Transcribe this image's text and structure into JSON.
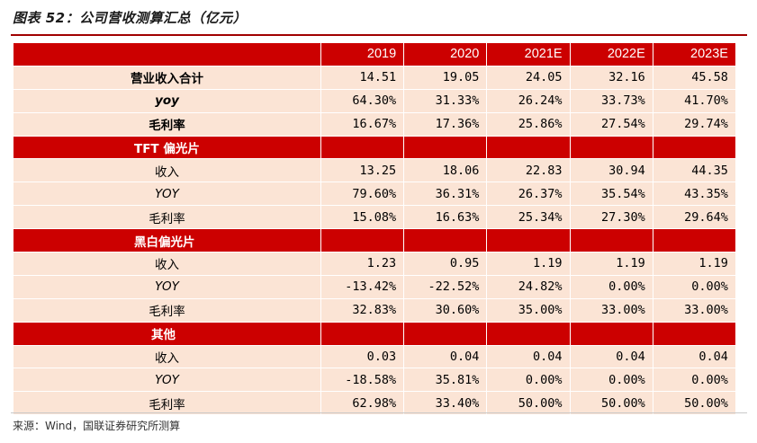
{
  "title": "图表 52：公司营收测算汇总（亿元）",
  "columns": [
    "2019",
    "2020",
    "2021E",
    "2022E",
    "2023E"
  ],
  "summary_rows": [
    {
      "label": "营业收入合计",
      "values": [
        "14.51",
        "19.05",
        "24.05",
        "32.16",
        "45.58"
      ]
    },
    {
      "label": "yoy",
      "values": [
        "64.30%",
        "31.33%",
        "26.24%",
        "33.73%",
        "41.70%"
      ]
    },
    {
      "label": "毛利率",
      "values": [
        "16.67%",
        "17.36%",
        "25.86%",
        "27.54%",
        "29.74%"
      ]
    }
  ],
  "segments": [
    {
      "name": "TFT 偏光片",
      "rows": [
        {
          "label": "收入",
          "values": [
            "13.25",
            "18.06",
            "22.83",
            "30.94",
            "44.35"
          ]
        },
        {
          "label": "YOY",
          "values": [
            "79.60%",
            "36.31%",
            "26.37%",
            "35.54%",
            "43.35%"
          ]
        },
        {
          "label": "毛利率",
          "values": [
            "15.08%",
            "16.63%",
            "25.34%",
            "27.30%",
            "29.64%"
          ]
        }
      ]
    },
    {
      "name": "黑白偏光片",
      "rows": [
        {
          "label": "收入",
          "values": [
            "1.23",
            "0.95",
            "1.19",
            "1.19",
            "1.19"
          ]
        },
        {
          "label": "YOY",
          "values": [
            "-13.42%",
            "-22.52%",
            "24.82%",
            "0.00%",
            "0.00%"
          ]
        },
        {
          "label": "毛利率",
          "values": [
            "32.83%",
            "30.60%",
            "35.00%",
            "33.00%",
            "33.00%"
          ]
        }
      ]
    },
    {
      "name": "其他",
      "rows": [
        {
          "label": "收入",
          "values": [
            "0.03",
            "0.04",
            "0.04",
            "0.04",
            "0.04"
          ]
        },
        {
          "label": "YOY",
          "values": [
            "-18.58%",
            "35.81%",
            "0.00%",
            "0.00%",
            "0.00%"
          ]
        },
        {
          "label": "毛利率",
          "values": [
            "62.98%",
            "33.40%",
            "50.00%",
            "50.00%",
            "50.00%"
          ]
        }
      ]
    }
  ],
  "source": "来源：Wind，国联证券研究所测算"
}
